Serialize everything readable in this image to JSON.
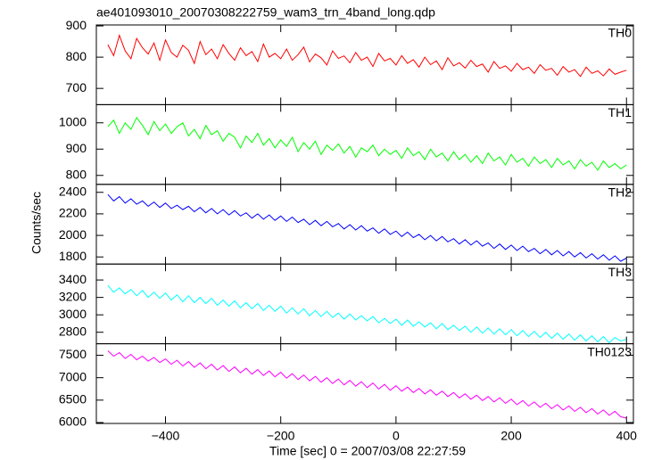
{
  "chart_data": {
    "type": "line",
    "title": "ae401093010_20070308222759_wam3_trn_4band_long.qdp",
    "xlabel": "Time [sec] 0 = 2007/03/08 22:27:59",
    "ylabel": "Counts/sec",
    "xlim": [
      -520,
      412
    ],
    "xticks": [
      {
        "value": -400,
        "label": "−400"
      },
      {
        "value": -200,
        "label": "−200"
      },
      0,
      200,
      400
    ],
    "x": [
      -500,
      -490,
      -480,
      -470,
      -460,
      -450,
      -440,
      -430,
      -420,
      -410,
      -400,
      -390,
      -380,
      -370,
      -360,
      -350,
      -340,
      -330,
      -320,
      -310,
      -300,
      -290,
      -280,
      -270,
      -260,
      -250,
      -240,
      -230,
      -220,
      -210,
      -200,
      -190,
      -180,
      -170,
      -160,
      -150,
      -140,
      -130,
      -120,
      -110,
      -100,
      -90,
      -80,
      -70,
      -60,
      -50,
      -40,
      -30,
      -20,
      -10,
      0,
      10,
      20,
      30,
      40,
      50,
      60,
      70,
      80,
      90,
      100,
      110,
      120,
      130,
      140,
      150,
      160,
      170,
      180,
      190,
      200,
      210,
      220,
      230,
      240,
      250,
      260,
      270,
      280,
      290,
      300,
      310,
      320,
      330,
      340,
      350,
      360,
      370,
      380,
      390,
      400
    ],
    "series": [
      {
        "name": "TH0",
        "color": "#ff0000",
        "ylim": [
          648,
          903
        ],
        "yticks": [
          700,
          800,
          900
        ],
        "values": [
          840,
          805,
          870,
          820,
          795,
          860,
          830,
          810,
          845,
          790,
          855,
          815,
          800,
          838,
          822,
          780,
          850,
          808,
          826,
          795,
          840,
          812,
          790,
          830,
          805,
          818,
          786,
          842,
          800,
          812,
          795,
          826,
          790,
          808,
          832,
          785,
          810,
          798,
          775,
          820,
          796,
          804,
          782,
          815,
          790,
          800,
          770,
          812,
          788,
          796,
          775,
          805,
          780,
          792,
          768,
          800,
          776,
          788,
          760,
          798,
          772,
          782,
          765,
          790,
          770,
          778,
          752,
          786,
          764,
          772,
          755,
          780,
          760,
          768,
          748,
          776,
          758,
          764,
          742,
          770,
          752,
          760,
          738,
          768,
          748,
          756,
          740,
          762,
          745,
          752,
          758
        ]
      },
      {
        "name": "TH1",
        "color": "#00ff00",
        "ylim": [
          766,
          1069
        ],
        "yticks": [
          800,
          900,
          1000
        ],
        "values": [
          985,
          1010,
          960,
          1000,
          975,
          1020,
          990,
          955,
          1005,
          970,
          995,
          960,
          985,
          1000,
          950,
          975,
          940,
          990,
          955,
          970,
          930,
          960,
          945,
          905,
          950,
          925,
          960,
          915,
          940,
          905,
          935,
          910,
          945,
          890,
          925,
          900,
          930,
          880,
          915,
          895,
          920,
          885,
          910,
          870,
          905,
          890,
          915,
          875,
          900,
          880,
          895,
          865,
          905,
          875,
          890,
          860,
          900,
          870,
          885,
          855,
          890,
          860,
          880,
          850,
          875,
          845,
          885,
          855,
          870,
          840,
          880,
          850,
          865,
          835,
          870,
          845,
          860,
          830,
          865,
          840,
          855,
          825,
          860,
          835,
          850,
          820,
          855,
          830,
          845,
          825,
          840
        ]
      },
      {
        "name": "TH2",
        "color": "#0000ff",
        "ylim": [
          1734,
          2474
        ],
        "yticks": [
          1800,
          2000,
          2200,
          2400
        ],
        "values": [
          2380,
          2320,
          2360,
          2300,
          2340,
          2290,
          2320,
          2270,
          2310,
          2260,
          2300,
          2250,
          2280,
          2240,
          2270,
          2220,
          2260,
          2210,
          2250,
          2200,
          2240,
          2190,
          2230,
          2180,
          2210,
          2160,
          2200,
          2150,
          2190,
          2140,
          2180,
          2130,
          2170,
          2120,
          2150,
          2100,
          2140,
          2090,
          2130,
          2080,
          2110,
          2060,
          2100,
          2050,
          2090,
          2040,
          2070,
          2020,
          2060,
          2010,
          2040,
          1990,
          2030,
          1980,
          2010,
          1960,
          2000,
          1950,
          1990,
          1940,
          1970,
          1920,
          1960,
          1910,
          1950,
          1900,
          1930,
          1880,
          1920,
          1870,
          1910,
          1860,
          1900,
          1850,
          1880,
          1830,
          1870,
          1820,
          1860,
          1810,
          1850,
          1800,
          1840,
          1790,
          1830,
          1780,
          1820,
          1770,
          1810,
          1760,
          1790
        ]
      },
      {
        "name": "TH3",
        "color": "#00ffff",
        "ylim": [
          2668,
          3583
        ],
        "yticks": [
          2800,
          3000,
          3200,
          3400
        ],
        "values": [
          3340,
          3260,
          3310,
          3240,
          3290,
          3220,
          3280,
          3200,
          3260,
          3190,
          3250,
          3170,
          3230,
          3150,
          3220,
          3140,
          3200,
          3130,
          3190,
          3110,
          3170,
          3100,
          3160,
          3080,
          3140,
          3070,
          3130,
          3050,
          3110,
          3040,
          3100,
          3020,
          3080,
          3010,
          3070,
          2990,
          3050,
          2980,
          3040,
          2970,
          3020,
          2950,
          3010,
          2940,
          2990,
          2930,
          2980,
          2910,
          2960,
          2900,
          2950,
          2880,
          2940,
          2870,
          2920,
          2860,
          2910,
          2840,
          2900,
          2830,
          2880,
          2820,
          2870,
          2800,
          2860,
          2790,
          2850,
          2780,
          2840,
          2770,
          2830,
          2760,
          2820,
          2750,
          2810,
          2740,
          2800,
          2730,
          2790,
          2720,
          2780,
          2710,
          2770,
          2700,
          2760,
          2690,
          2750,
          2680,
          2740,
          2700,
          2720
        ]
      },
      {
        "name": "TH0123",
        "color": "#ff00ff",
        "ylim": [
          5980,
          7757
        ],
        "yticks": [
          6000,
          6500,
          7000,
          7500
        ],
        "values": [
          7600,
          7480,
          7560,
          7430,
          7520,
          7400,
          7480,
          7370,
          7450,
          7340,
          7420,
          7300,
          7390,
          7260,
          7360,
          7230,
          7330,
          7200,
          7300,
          7170,
          7270,
          7140,
          7240,
          7110,
          7210,
          7080,
          7180,
          7050,
          7150,
          7020,
          7120,
          6990,
          7090,
          6960,
          7060,
          6930,
          7030,
          6900,
          7000,
          6870,
          6970,
          6840,
          6940,
          6810,
          6910,
          6780,
          6880,
          6750,
          6850,
          6720,
          6820,
          6700,
          6790,
          6670,
          6760,
          6640,
          6730,
          6610,
          6700,
          6580,
          6670,
          6550,
          6640,
          6520,
          6610,
          6490,
          6580,
          6460,
          6550,
          6430,
          6520,
          6400,
          6490,
          6370,
          6460,
          6340,
          6430,
          6310,
          6400,
          6280,
          6370,
          6250,
          6340,
          6220,
          6310,
          6190,
          6280,
          6160,
          6250,
          6130,
          6100
        ]
      }
    ]
  }
}
